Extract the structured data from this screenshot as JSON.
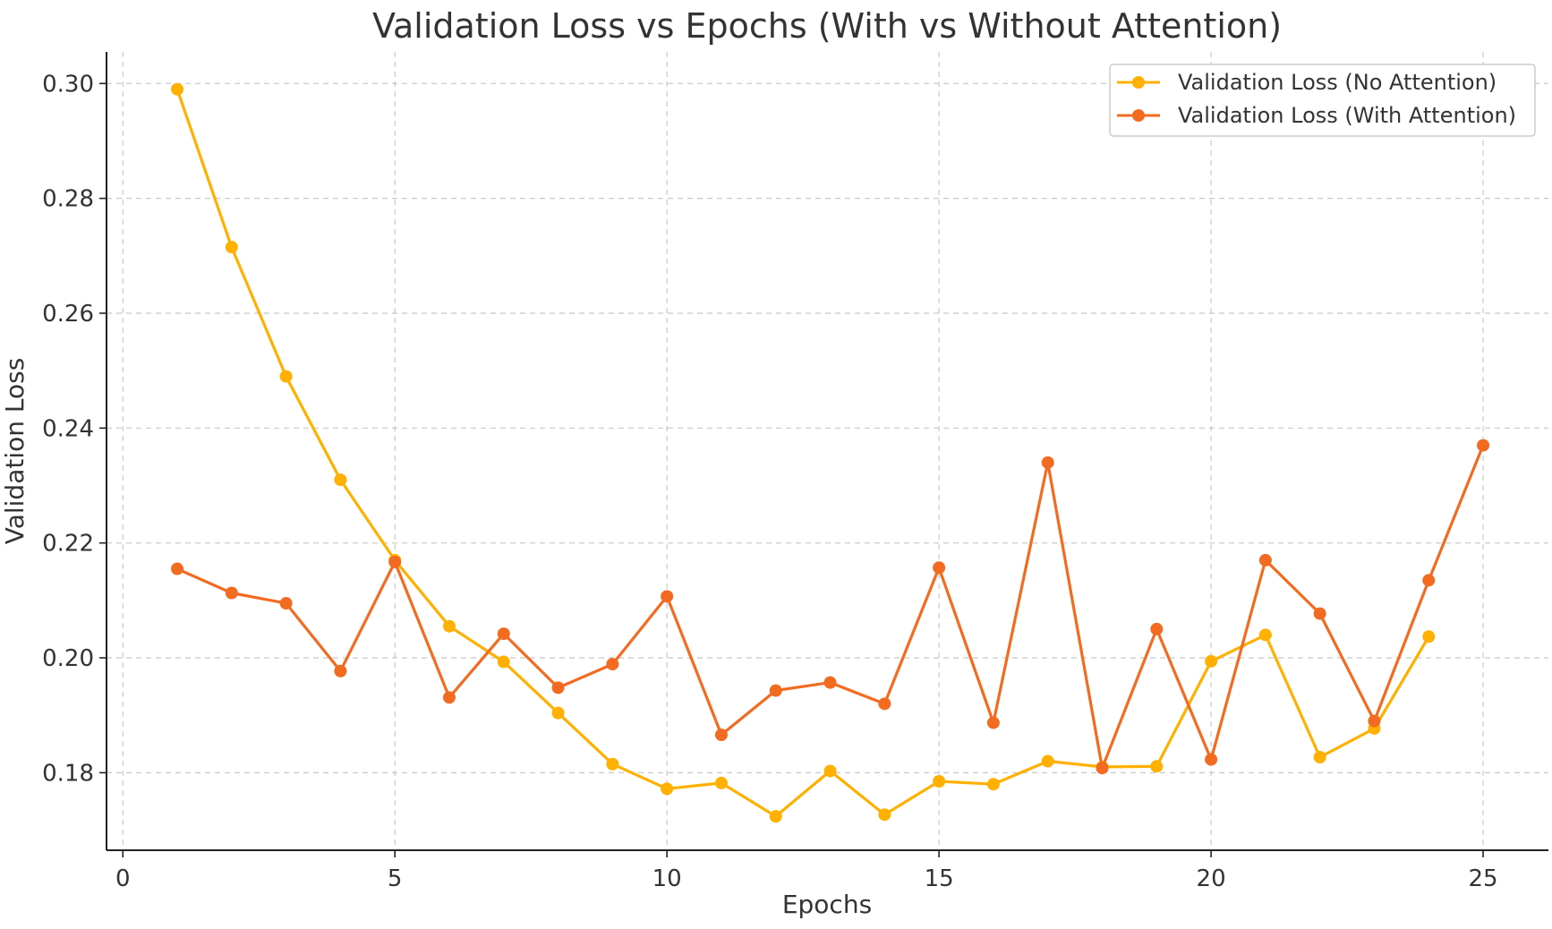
{
  "chart_data": {
    "type": "line",
    "title": "Validation Loss vs Epochs (With vs Without Attention)",
    "xlabel": "Epochs",
    "ylabel": "Validation Loss",
    "xlim": [
      -0.3,
      26.2
    ],
    "ylim": [
      0.1665,
      0.3055
    ],
    "xticks": [
      0,
      5,
      10,
      15,
      20,
      25
    ],
    "yticks": [
      0.18,
      0.2,
      0.22,
      0.24,
      0.26,
      0.28,
      0.3
    ],
    "xtick_labels": [
      "0",
      "5",
      "10",
      "15",
      "20",
      "25"
    ],
    "ytick_labels": [
      "0.18",
      "0.20",
      "0.22",
      "0.24",
      "0.26",
      "0.28",
      "0.30"
    ],
    "grid": true,
    "legend_position": "top-right",
    "series": [
      {
        "name": "Validation Loss (No Attention)",
        "color": "#FFB000",
        "marker": "circle",
        "x": [
          1,
          2,
          3,
          4,
          5,
          6,
          7,
          8,
          9,
          10,
          11,
          12,
          13,
          14,
          15,
          16,
          17,
          18,
          19,
          20,
          21,
          22,
          23,
          24
        ],
        "values": [
          0.299,
          0.2715,
          0.249,
          0.231,
          0.217,
          0.2055,
          0.1993,
          0.1904,
          0.1815,
          0.1772,
          0.1782,
          0.1724,
          0.1803,
          0.1727,
          0.1785,
          0.178,
          0.182,
          0.181,
          0.1811,
          0.1994,
          0.204,
          0.1827,
          0.1877,
          0.2037
        ]
      },
      {
        "name": "Validation Loss (With Attention)",
        "color": "#F26B21",
        "marker": "circle",
        "x": [
          1,
          2,
          3,
          4,
          5,
          6,
          7,
          8,
          9,
          10,
          11,
          12,
          13,
          14,
          15,
          16,
          17,
          18,
          19,
          20,
          21,
          22,
          23,
          24,
          25
        ],
        "values": [
          0.2155,
          0.2113,
          0.2095,
          0.1977,
          0.2167,
          0.1931,
          0.2042,
          0.1948,
          0.1989,
          0.2107,
          0.1866,
          0.1943,
          0.1957,
          0.192,
          0.2157,
          0.1887,
          0.234,
          0.1808,
          0.205,
          0.1823,
          0.217,
          0.2077,
          0.189,
          0.2135,
          0.237
        ]
      }
    ]
  }
}
